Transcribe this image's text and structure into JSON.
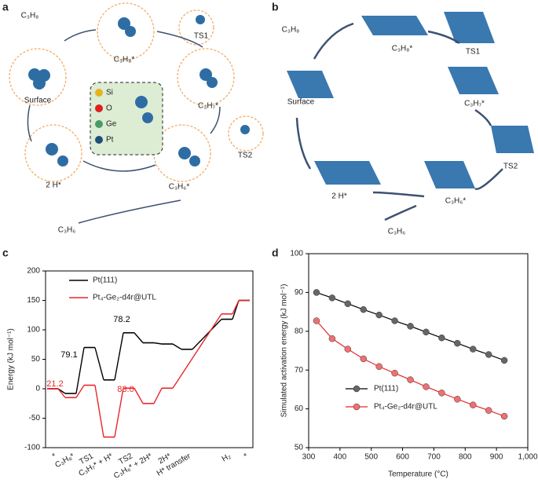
{
  "panels": {
    "a": {
      "letter": "a",
      "labels": [
        "C₃H₈",
        "C₃H₈*",
        "TS1",
        "C₃H₇*",
        "TS2",
        "C₃H₆*",
        "2 H*",
        "Surface",
        "C₃H₆"
      ],
      "legend": [
        "Si",
        "O",
        "Ge",
        "Pt"
      ]
    },
    "b": {
      "letter": "b",
      "labels": [
        "C₃H₈",
        "C₃H₈*",
        "TS1",
        "C₃H₇*",
        "TS2",
        "C₃H₆*",
        "2 H*",
        "Surface",
        "C₃H₆"
      ]
    }
  },
  "chart_data": [
    {
      "type": "energy_profile",
      "panel": "c",
      "ylabel": "Energy (kJ mol⁻¹)",
      "categories": [
        "*",
        "C₃H₈*",
        "TS1",
        "C₃H₇* + H*",
        "TS2",
        "C₃H₆* + 2H*",
        "2H*",
        "H* transfer",
        "H₂",
        "*"
      ],
      "series": [
        {
          "name": "Pt(111)",
          "color": "#000000",
          "values": [
            0,
            -8,
            70,
            15,
            95,
            78,
            76,
            67,
            118,
            150
          ]
        },
        {
          "name": "Pt₄-Ge₂-d4r@UTL",
          "color": "#e8262b",
          "values": [
            0,
            -15,
            6,
            -82,
            1,
            -25,
            1,
            null,
            127,
            150
          ]
        }
      ],
      "annotations": [
        "79.1",
        "78.2",
        "21.2",
        "83.0"
      ],
      "ylim": [
        -100,
        200
      ],
      "yticks": [
        -100,
        -50,
        0,
        50,
        100,
        150,
        200
      ],
      "legend": "upper left"
    },
    {
      "type": "line",
      "panel": "d",
      "xlabel": "Temperature (°C)",
      "ylabel": "Simulated activation energy (kJ mol⁻¹)",
      "x": [
        325,
        375,
        425,
        475,
        525,
        575,
        625,
        675,
        725,
        775,
        825,
        875,
        925
      ],
      "series": [
        {
          "name": "Pt(111)",
          "color": "#000000",
          "marker_color": "#666666",
          "values": [
            90,
            88.6,
            87.1,
            85.6,
            84.2,
            82.7,
            81.3,
            79.8,
            78.3,
            76.9,
            75.4,
            74.0,
            72.5
          ]
        },
        {
          "name": "Pt₄-Ge₂-d4r@UTL",
          "color": "#e8262b",
          "marker_color": "#f07070",
          "values": [
            82.7,
            78.1,
            75.4,
            72.9,
            70.9,
            69.2,
            67.5,
            65.7,
            64.1,
            62.5,
            61.0,
            59.6,
            58.1
          ]
        }
      ],
      "xlim": [
        300,
        1000
      ],
      "xticks": [
        300,
        400,
        500,
        600,
        700,
        800,
        900,
        {
          "value": 1000,
          "label": "1,000"
        }
      ],
      "ylim": [
        50,
        100
      ],
      "yticks": [
        50,
        60,
        70,
        80,
        90,
        100
      ],
      "legend": "lower left"
    }
  ]
}
